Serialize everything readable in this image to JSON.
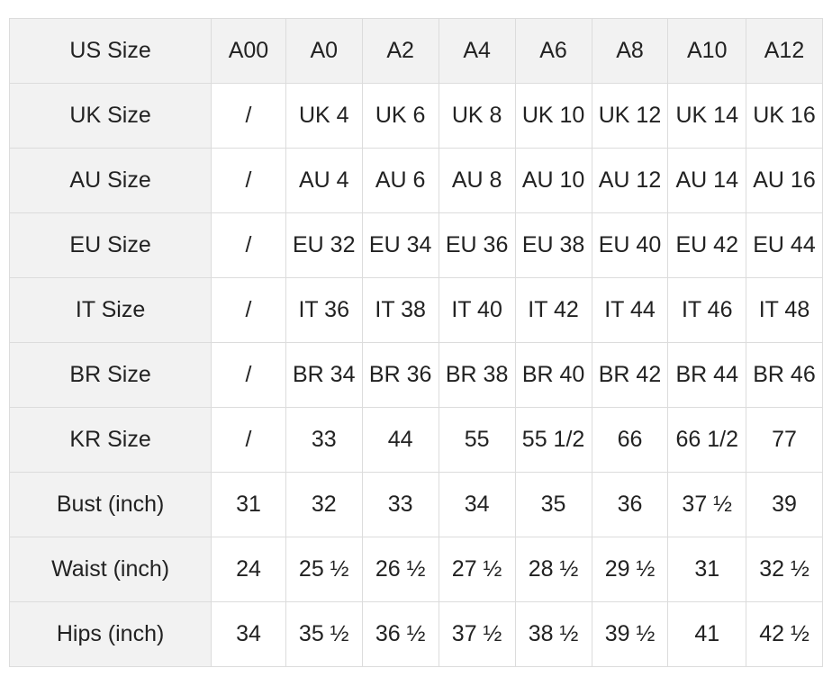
{
  "table": {
    "rows": [
      [
        "US Size",
        "A00",
        "A0",
        "A2",
        "A4",
        "A6",
        "A8",
        "A10",
        "A12"
      ],
      [
        "UK Size",
        "/",
        "UK 4",
        "UK 6",
        "UK 8",
        "UK 10",
        "UK 12",
        "UK 14",
        "UK 16"
      ],
      [
        "AU Size",
        "/",
        "AU 4",
        "AU 6",
        "AU 8",
        "AU 10",
        "AU 12",
        "AU 14",
        "AU 16"
      ],
      [
        "EU Size",
        "/",
        "EU 32",
        "EU 34",
        "EU 36",
        "EU 38",
        "EU 40",
        "EU 42",
        "EU 44"
      ],
      [
        "IT Size",
        "/",
        "IT 36",
        "IT 38",
        "IT 40",
        "IT 42",
        "IT 44",
        "IT 46",
        "IT 48"
      ],
      [
        "BR Size",
        "/",
        "BR 34",
        "BR 36",
        "BR 38",
        "BR 40",
        "BR 42",
        "BR 44",
        "BR 46"
      ],
      [
        "KR Size",
        "/",
        "33",
        "44",
        "55",
        "55 1/2",
        "66",
        "66 1/2",
        "77"
      ],
      [
        "Bust (inch)",
        "31",
        "32",
        "33",
        "34",
        "35",
        "36",
        "37 ½",
        "39"
      ],
      [
        "Waist (inch)",
        "24",
        "25 ½",
        "26 ½",
        "27 ½",
        "28 ½",
        "29 ½",
        "31",
        "32 ½"
      ],
      [
        "Hips (inch)",
        "34",
        "35 ½",
        "36 ½",
        "37 ½",
        "38 ½",
        "39 ½",
        "41",
        "42 ½"
      ]
    ]
  }
}
